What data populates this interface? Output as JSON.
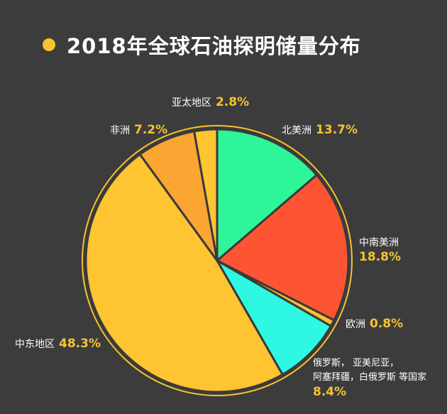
{
  "title": "2018年全球石油探明储量分布",
  "colors": {
    "background": "#3c3c3c",
    "accent": "#f7c330",
    "outline": "#3a3a3a"
  },
  "chart_data": {
    "type": "pie",
    "title": "2018年全球石油探明储量分布",
    "unit": "%",
    "slices": [
      {
        "label": "北美洲",
        "value": 13.7,
        "display": "13.7%",
        "color": "#2ef597"
      },
      {
        "label": "中南美洲",
        "value": 18.8,
        "display": "18.8%",
        "color": "#fd5534"
      },
      {
        "label": "欧洲",
        "value": 0.8,
        "display": "0.8%",
        "color": "#f7c330"
      },
      {
        "label_lines": [
          "俄罗斯， 亚美尼亚，",
          "阿塞拜疆，白俄罗斯 等国家"
        ],
        "value": 8.4,
        "display": "8.4%",
        "color": "#2ef8e2"
      },
      {
        "label": "中东地区",
        "value": 48.3,
        "display": "48.3%",
        "color": "#fec431"
      },
      {
        "label": "非洲",
        "value": 7.2,
        "display": "7.2%",
        "color": "#fba633"
      },
      {
        "label": "亚太地区",
        "value": 2.8,
        "display": "2.8%",
        "color": "#fec431"
      }
    ]
  }
}
